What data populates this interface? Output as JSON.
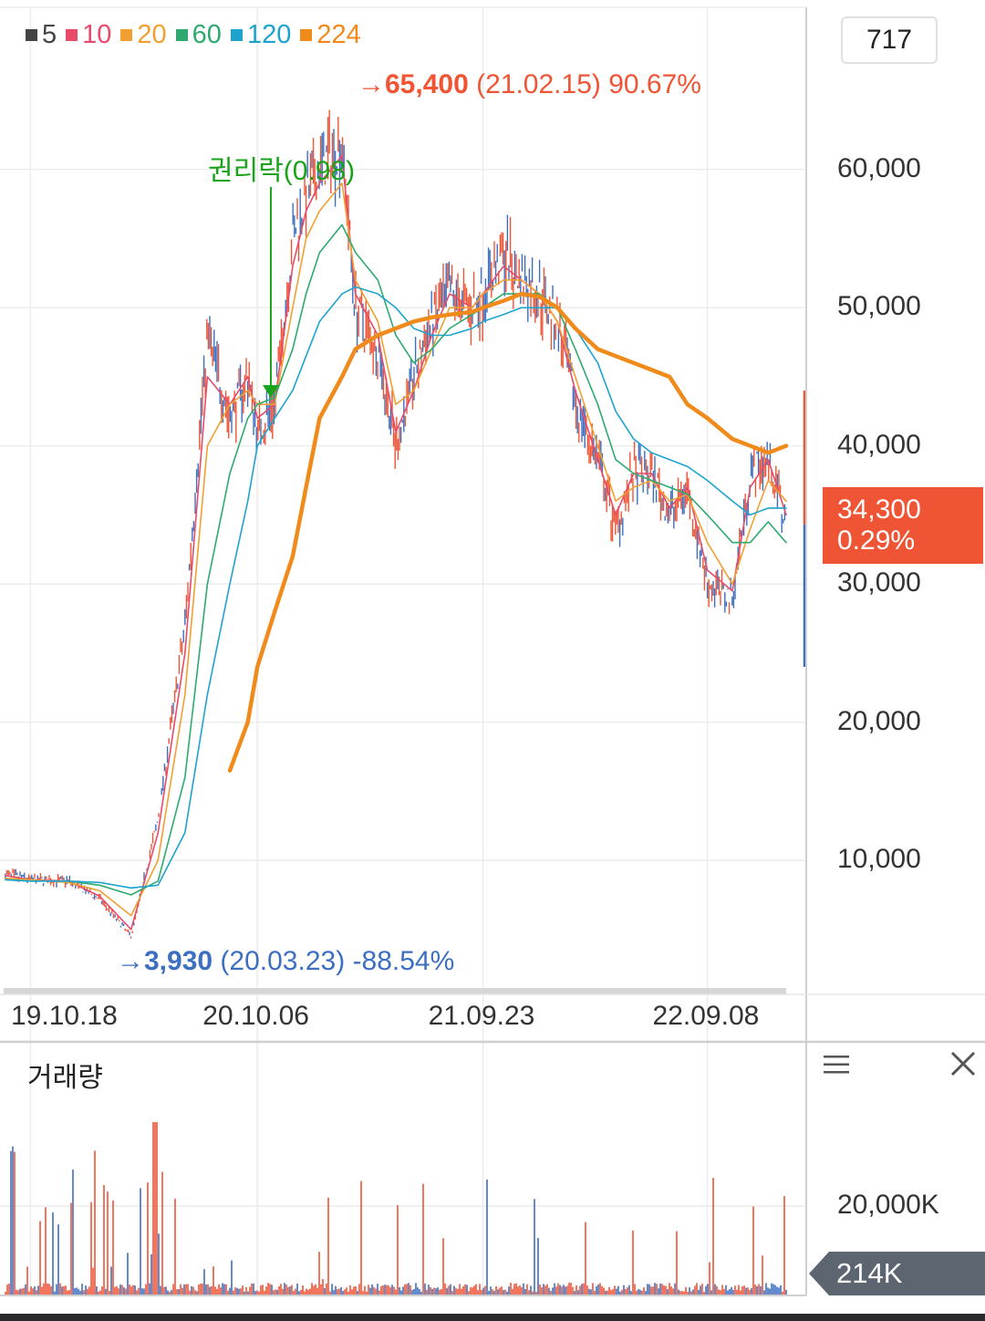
{
  "legend": [
    {
      "label": "5",
      "color": "#444444"
    },
    {
      "label": "10",
      "color": "#e84a6a"
    },
    {
      "label": "20",
      "color": "#f0a030"
    },
    {
      "label": "60",
      "color": "#2eaa6e"
    },
    {
      "label": "120",
      "color": "#1ea3cf"
    },
    {
      "label": "224",
      "color": "#f08a1a"
    }
  ],
  "count_box": "717",
  "annotations": {
    "high_price": "65,400",
    "high_date": "(21.02.15) 90.67%",
    "low_price": "3,930",
    "low_date": "(20.03.23) -88.54%",
    "rights_label": "권리락(0.98)"
  },
  "current": {
    "price": "34,300",
    "change": "0.29%"
  },
  "volume": {
    "title": "거래량",
    "axis_label": "20,000K",
    "current": "214K"
  },
  "colors": {
    "up": "#ef5435",
    "down": "#3d6fc0",
    "rights": "#1aa31a",
    "grid": "#ececec"
  },
  "icons": {
    "menu": "menu-icon",
    "close": "close-icon"
  },
  "chart_data": {
    "type": "line",
    "y_tick_labels": [
      "60,000",
      "50,000",
      "40,000",
      "30,000",
      "20,000",
      "10,000"
    ],
    "y_ticks": [
      60000,
      50000,
      40000,
      30000,
      20000,
      10000
    ],
    "x_tick_labels": [
      "19.10.18",
      "20.10.06",
      "21.09.23",
      "22.09.08"
    ],
    "x_ticks": [
      "2019-10-18",
      "2020-10-06",
      "2021-09-23",
      "2022-09-08"
    ],
    "x": [
      "2019-09-09",
      "2019-10-18",
      "2019-12-16",
      "2020-02-03",
      "2020-03-23",
      "2020-05-04",
      "2020-06-15",
      "2020-07-20",
      "2020-08-24",
      "2020-09-21",
      "2020-10-06",
      "2020-11-02",
      "2020-11-30",
      "2020-12-21",
      "2021-01-11",
      "2021-02-15",
      "2021-03-08",
      "2021-04-12",
      "2021-05-10",
      "2021-06-07",
      "2021-07-05",
      "2021-08-02",
      "2021-09-06",
      "2021-09-23",
      "2021-10-25",
      "2021-11-22",
      "2021-12-20",
      "2022-01-17",
      "2022-02-14",
      "2022-03-21",
      "2022-04-18",
      "2022-05-16",
      "2022-06-13",
      "2022-07-11",
      "2022-08-08",
      "2022-09-08",
      "2022-10-17",
      "2022-11-14",
      "2022-12-12",
      "2023-01-09"
    ],
    "series": [
      {
        "name": "5",
        "values": [
          9000,
          8600,
          8500,
          7200,
          4500,
          13000,
          27000,
          48000,
          42000,
          45000,
          41000,
          43000,
          55000,
          58000,
          60000,
          62000,
          50000,
          47000,
          40000,
          45000,
          49000,
          51000,
          50000,
          51000,
          54000,
          52000,
          51000,
          49000,
          43000,
          39000,
          34000,
          38000,
          38000,
          35000,
          37000,
          30000,
          29000,
          38000,
          39000,
          34300
        ]
      },
      {
        "name": "10",
        "values": [
          8900,
          8600,
          8500,
          7400,
          5000,
          12000,
          25000,
          45000,
          43000,
          45000,
          42000,
          43000,
          53000,
          57000,
          59000,
          61000,
          51000,
          48000,
          41000,
          44000,
          48000,
          51000,
          50000,
          51000,
          53000,
          52000,
          51000,
          49000,
          44000,
          39000,
          35000,
          38000,
          38000,
          35500,
          37000,
          31000,
          29500,
          37000,
          39000,
          35000
        ]
      },
      {
        "name": "20",
        "values": [
          8700,
          8600,
          8400,
          7800,
          6000,
          10000,
          22000,
          40000,
          43000,
          44000,
          43000,
          43000,
          50000,
          55000,
          57000,
          59000,
          52000,
          49000,
          43000,
          44000,
          47000,
          50000,
          50000,
          51000,
          52000,
          52000,
          51000,
          49000,
          45000,
          40000,
          36000,
          37000,
          37500,
          36000,
          36500,
          33000,
          30000,
          34000,
          37500,
          36000
        ]
      },
      {
        "name": "60",
        "values": [
          8600,
          8500,
          8500,
          8200,
          7500,
          8500,
          16000,
          30000,
          38000,
          42000,
          43000,
          43500,
          47000,
          51000,
          54000,
          56000,
          54000,
          52000,
          48000,
          46000,
          47000,
          48500,
          49500,
          50000,
          51000,
          51000,
          51000,
          50000,
          47000,
          43000,
          39000,
          38000,
          37500,
          37000,
          36500,
          35000,
          33000,
          33000,
          34500,
          33000
        ]
      },
      {
        "name": "120",
        "values": [
          8600,
          8500,
          8500,
          8400,
          8000,
          8200,
          12000,
          22000,
          30000,
          36000,
          40000,
          42000,
          44000,
          46500,
          49000,
          51000,
          51500,
          51000,
          50000,
          48500,
          48000,
          48000,
          48500,
          49000,
          49500,
          50000,
          50000,
          50000,
          48500,
          46000,
          42500,
          40500,
          39500,
          39000,
          38500,
          37500,
          36000,
          35000,
          35500,
          35500
        ]
      },
      {
        "name": "224",
        "values": [
          null,
          null,
          null,
          null,
          null,
          null,
          null,
          null,
          16500,
          20000,
          24000,
          28000,
          32000,
          37000,
          42000,
          45000,
          47000,
          48000,
          48500,
          49000,
          49300,
          49500,
          49700,
          50000,
          50500,
          51000,
          50800,
          50000,
          48500,
          47000,
          46500,
          46000,
          45500,
          45000,
          43000,
          42000,
          40500,
          40000,
          39500,
          40000
        ]
      }
    ],
    "annotations": [
      {
        "label": "65,400 (21.02.15) 90.67%",
        "x": "2021-02-15",
        "y": 65400
      },
      {
        "label": "3,930 (20.03.23) -88.54%",
        "x": "2020-03-23",
        "y": 3930
      },
      {
        "label": "권리락(0.98)",
        "x": "2020-10-27",
        "y": 44000
      }
    ],
    "current_price": 34300,
    "grid": true,
    "ylim": [
      0,
      70000
    ]
  }
}
